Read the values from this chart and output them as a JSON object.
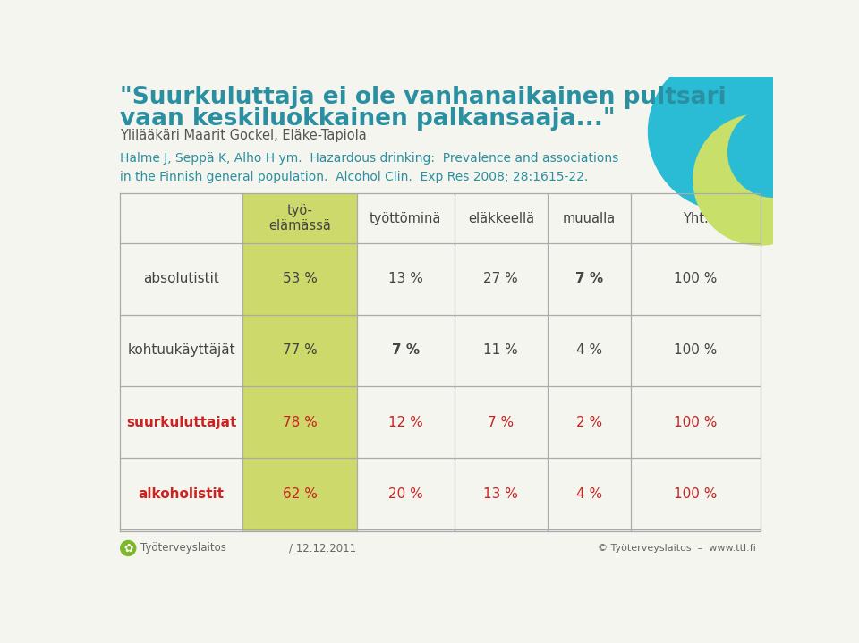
{
  "bg_color": "#f5f5f0",
  "title_line1": "\"Suurkuluttaja ei ole vanhanaikainen pultsari",
  "title_line2": "vaan keskiluokkainen palkansaaja...\"",
  "subtitle": "Ylilääkäri Maarit Gockel, Eläke-Tapiola",
  "title_color": "#2a8fa0",
  "subtitle_color": "#555555",
  "reference_text": "Halme J, Seppä K, Alho H ym.  Hazardous drinking:  Prevalence and associations\nin the Finnish general population.  Alcohol Clin.  Exp Res 2008; 28:1615-22.",
  "reference_color": "#2a8fa0",
  "table_header": [
    "työ-\nelämässä",
    "työttöminä",
    "eläkkeellä",
    "muualla",
    "Yht."
  ],
  "row_labels": [
    "absolutistit",
    "kohtuukäyttäjät",
    "suurkuluttajat",
    "alkoholistit"
  ],
  "row_label_colors": [
    "#444444",
    "#444444",
    "#cc2222",
    "#cc2222"
  ],
  "table_data": [
    [
      "53 %",
      "13 %",
      "27 %",
      "7 %",
      "100 %"
    ],
    [
      "77 %",
      "7 %",
      "11 %",
      "4 %",
      "100 %"
    ],
    [
      "78 %",
      "12 %",
      "7 %",
      "2 %",
      "100 %"
    ],
    [
      "62 %",
      "20 %",
      "13 %",
      "4 %",
      "100 %"
    ]
  ],
  "data_colors": [
    [
      "#444444",
      "#444444",
      "#444444",
      "#444444",
      "#444444"
    ],
    [
      "#444444",
      "#444444",
      "#444444",
      "#444444",
      "#444444"
    ],
    [
      "#cc2222",
      "#cc2222",
      "#cc2222",
      "#cc2222",
      "#cc2222"
    ],
    [
      "#cc2222",
      "#cc2222",
      "#cc2222",
      "#cc2222",
      "#cc2222"
    ]
  ],
  "bold_cells": [
    [
      false,
      false,
      false,
      true,
      false
    ],
    [
      false,
      true,
      false,
      false,
      false
    ],
    [
      false,
      false,
      false,
      false,
      false
    ],
    [
      false,
      false,
      false,
      false,
      false
    ]
  ],
  "col1_bg": "#cdd96a",
  "circle_cyan": "#29bcd4",
  "circle_lime": "#c8e06a",
  "footer_date": "/ 12.12.2011",
  "footer_org": "© Työterveyslaitos  –  www.ttl.fi",
  "footer_logo_text": "Työterveyslaitos",
  "footer_color": "#666666",
  "logo_color": "#7db82a"
}
